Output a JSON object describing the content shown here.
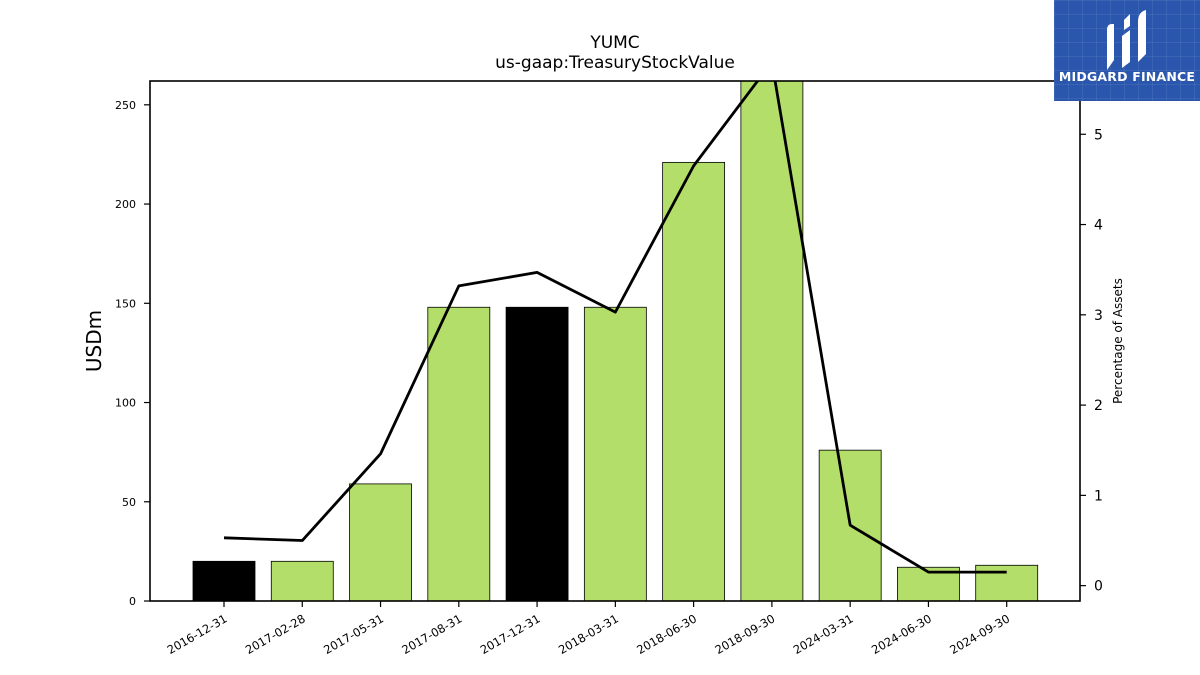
{
  "chart_data": {
    "type": "bar",
    "title": "YUMC",
    "subtitle": "us-gaap:TreasuryStockValue",
    "ylabel": "USDm",
    "y2label": "Percentage of Assets",
    "categories": [
      "2016-12-31",
      "2017-02-28",
      "2017-05-31",
      "2017-08-31",
      "2017-12-31",
      "2018-03-31",
      "2018-06-30",
      "2018-09-30",
      "2024-03-31",
      "2024-06-30",
      "2024-09-30"
    ],
    "series": [
      {
        "values": [
          20,
          20,
          59,
          148,
          148,
          148,
          221,
          263,
          76,
          17,
          18
        ],
        "colors": [
          "#000000",
          "#b3de69",
          "#b3de69",
          "#b3de69",
          "#000000",
          "#b3de69",
          "#b3de69",
          "#b3de69",
          "#b3de69",
          "#b3de69",
          "#b3de69"
        ]
      },
      {
        "type": "line",
        "axis": "right",
        "values": [
          0.53,
          0.5,
          1.46,
          3.32,
          3.47,
          3.03,
          4.65,
          5.8,
          0.67,
          0.15,
          0.15
        ]
      }
    ],
    "ylim": [
      0,
      262
    ],
    "yticks": [
      0,
      50,
      100,
      150,
      200,
      250
    ],
    "y2lim": [
      -0.17,
      5.59
    ],
    "y2ticks": [
      0,
      1,
      2,
      3,
      4,
      5
    ],
    "grid": false,
    "legend": "none"
  },
  "logo": {
    "text": "MIDGARD FINANCE",
    "bg": "#2a57ad"
  }
}
